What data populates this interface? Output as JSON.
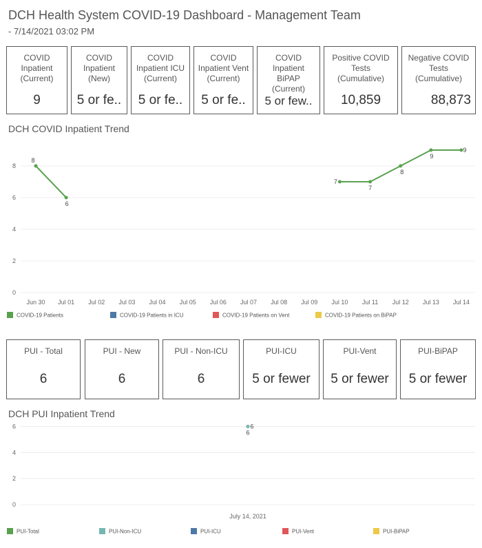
{
  "header": {
    "title": "DCH Health System COVID-19 Dashboard - Management Team",
    "timestamp": " - 7/14/2021 03:02 PM"
  },
  "kpis": [
    {
      "label": "COVID Inpatient (Current)",
      "value": "9"
    },
    {
      "label": "COVID Inpatient (New)",
      "value": "5 or fe.."
    },
    {
      "label": "COVID Inpatient ICU (Current)",
      "value": "5 or fe.."
    },
    {
      "label": "COVID Inpatient Vent (Current)",
      "value": "5 or fe.."
    },
    {
      "label": "COVID Inpatient BiPAP (Current)",
      "value": "5 or few.."
    },
    {
      "label": "Positive COVID Tests (Cumulative)",
      "value": "10,859"
    },
    {
      "label": "Negative COVID Tests (Cumulative)",
      "value": "88,873"
    }
  ],
  "pui_kpis": [
    {
      "label": "PUI - Total",
      "value": "6"
    },
    {
      "label": "PUI - New",
      "value": "6"
    },
    {
      "label": "PUI - Non-ICU",
      "value": "6"
    },
    {
      "label": "PUI-ICU",
      "value": "5 or fewer"
    },
    {
      "label": "PUI-Vent",
      "value": "5 or fewer"
    },
    {
      "label": "PUI-BiPAP",
      "value": "5 or fewer"
    }
  ],
  "colors": {
    "green": "#59a14f",
    "teal": "#76b7b2",
    "blue": "#4e79a7",
    "red": "#e15759",
    "yellow": "#edc948"
  },
  "chart_data": [
    {
      "type": "line",
      "title": "DCH COVID Inpatient Trend",
      "categories": [
        "Jun 30",
        "Jul 01",
        "Jul 02",
        "Jul 03",
        "Jul 04",
        "Jul 05",
        "Jul 06",
        "Jul 07",
        "Jul 08",
        "Jul 09",
        "Jul 10",
        "Jul 11",
        "Jul 12",
        "Jul 13",
        "Jul 14"
      ],
      "series": [
        {
          "name": "COVID-19 Patients",
          "color": "#59a14f",
          "values": [
            8,
            6,
            null,
            null,
            null,
            null,
            null,
            null,
            null,
            null,
            7,
            7,
            8,
            9,
            9
          ]
        }
      ],
      "legend": [
        {
          "name": "COVID-19 Patients",
          "color": "#59a14f"
        },
        {
          "name": "COVID-19 Patients in ICU",
          "color": "#4e79a7"
        },
        {
          "name": "COVID-19 Patients on Vent",
          "color": "#e15759"
        },
        {
          "name": "COVID-19 Patients on BiPAP",
          "color": "#edc948"
        }
      ],
      "yticks": [
        0,
        2,
        4,
        6,
        8
      ],
      "ylim": [
        0,
        10
      ],
      "legend_position": "bottom"
    },
    {
      "type": "line",
      "title": "DCH PUI Inpatient Trend",
      "categories": [
        "July 14, 2021"
      ],
      "series": [
        {
          "name": "PUI-Total",
          "color": "#59a14f",
          "values": [
            6
          ]
        },
        {
          "name": "PUI-Non-ICU",
          "color": "#76b7b2",
          "values": [
            6
          ]
        }
      ],
      "legend": [
        {
          "name": "PUI-Total",
          "color": "#59a14f"
        },
        {
          "name": "PUI-Non-ICU",
          "color": "#76b7b2"
        },
        {
          "name": "PUI-ICU",
          "color": "#4e79a7"
        },
        {
          "name": "PUI-Vent",
          "color": "#e15759"
        },
        {
          "name": "PUI-BiPAP",
          "color": "#edc948"
        }
      ],
      "yticks": [
        0,
        2,
        4,
        6
      ],
      "ylim": [
        0,
        6.5
      ],
      "legend_position": "bottom"
    }
  ]
}
